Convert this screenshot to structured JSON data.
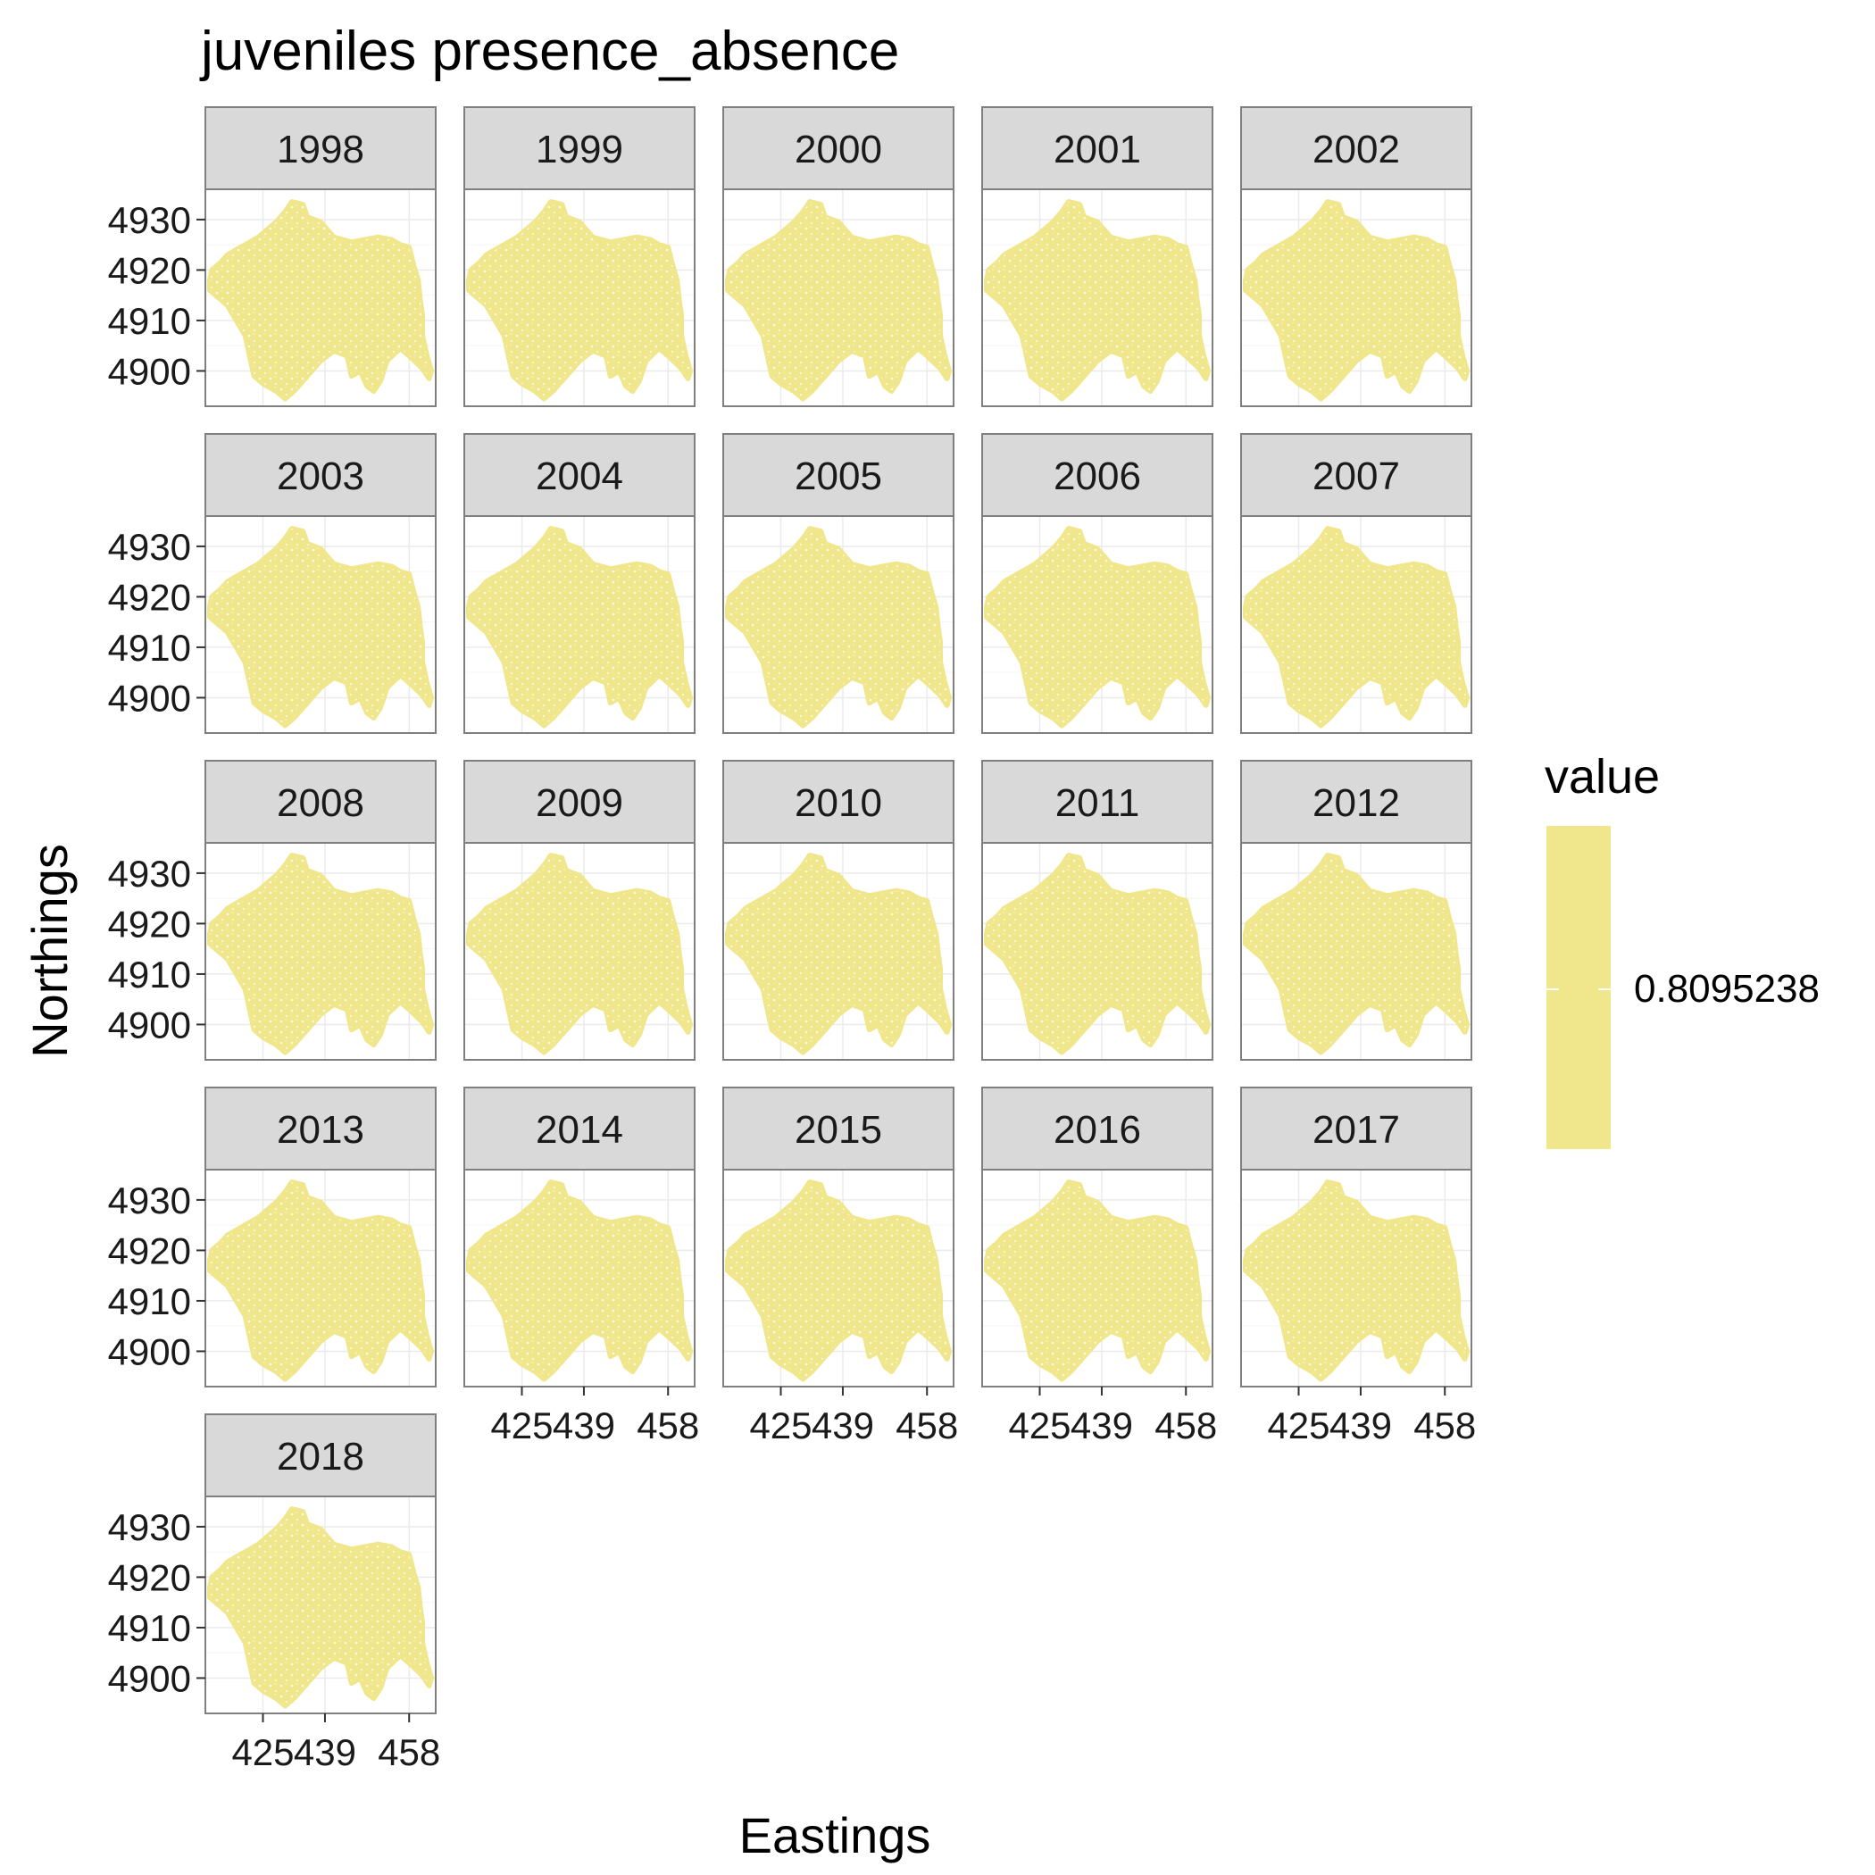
{
  "chart_data": {
    "type": "scatter",
    "title": "juveniles presence_absence",
    "xlabel": "Eastings",
    "ylabel": "Northings",
    "facets": [
      "1998",
      "1999",
      "2000",
      "2001",
      "2002",
      "2003",
      "2004",
      "2005",
      "2006",
      "2007",
      "2008",
      "2009",
      "2010",
      "2011",
      "2012",
      "2013",
      "2014",
      "2015",
      "2016",
      "2017",
      "2018"
    ],
    "facet_columns": 5,
    "x_ticks": [
      425,
      439,
      458
    ],
    "x_tick_labels": [
      "425",
      "439",
      "458"
    ],
    "y_ticks": [
      4900,
      4910,
      4920,
      4930
    ],
    "y_tick_labels": [
      "4900",
      "4910",
      "4920",
      "4930"
    ],
    "xlim": [
      412,
      464
    ],
    "ylim": [
      4893,
      4936
    ],
    "grid": true,
    "legend": {
      "title": "value",
      "placement": "right",
      "entries": [
        "0.8095238"
      ],
      "color": "#F0E68C"
    },
    "point_color": "#F0E68C",
    "region_outline": [
      [
        415.5,
        4921.5
      ],
      [
        417,
        4923
      ],
      [
        420,
        4924.5
      ],
      [
        424,
        4926.5
      ],
      [
        428,
        4929.5
      ],
      [
        430,
        4931.5
      ],
      [
        431.5,
        4933.5
      ],
      [
        434,
        4933
      ],
      [
        435,
        4930.5
      ],
      [
        438,
        4929.5
      ],
      [
        441,
        4926.5
      ],
      [
        445,
        4925.5
      ],
      [
        448,
        4926
      ],
      [
        451,
        4926.5
      ],
      [
        454,
        4926
      ],
      [
        456,
        4925
      ],
      [
        458,
        4924.5
      ],
      [
        459,
        4921
      ],
      [
        460,
        4918
      ],
      [
        460.5,
        4914
      ],
      [
        461,
        4911
      ],
      [
        461,
        4907
      ],
      [
        462,
        4903
      ],
      [
        463,
        4900
      ],
      [
        462.5,
        4898.5
      ],
      [
        461,
        4900.5
      ],
      [
        458,
        4903
      ],
      [
        456,
        4904.5
      ],
      [
        453,
        4902
      ],
      [
        451.5,
        4898
      ],
      [
        450,
        4896
      ],
      [
        448.5,
        4897
      ],
      [
        447,
        4900
      ],
      [
        445,
        4899
      ],
      [
        444,
        4903
      ],
      [
        441,
        4904
      ],
      [
        438,
        4902
      ],
      [
        435,
        4899
      ],
      [
        432,
        4896
      ],
      [
        430,
        4894.5
      ],
      [
        428,
        4896
      ],
      [
        425,
        4897.5
      ],
      [
        423,
        4899
      ],
      [
        422,
        4903
      ],
      [
        421,
        4907
      ],
      [
        419,
        4910
      ],
      [
        417,
        4913
      ],
      [
        415,
        4914.5
      ],
      [
        413,
        4916
      ],
      [
        413,
        4918
      ],
      [
        413.5,
        4920
      ],
      [
        415.5,
        4921.5
      ]
    ]
  }
}
